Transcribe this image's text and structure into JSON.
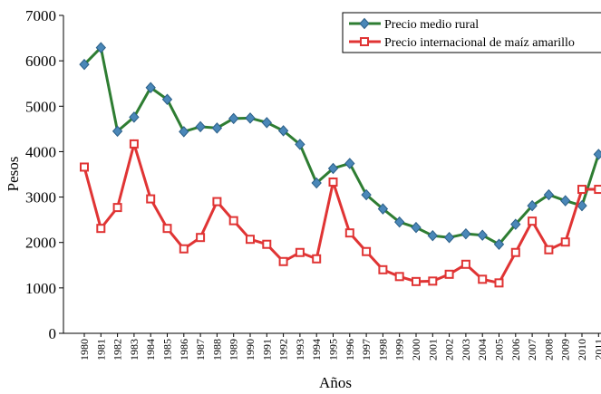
{
  "chart_data": {
    "type": "line",
    "x_label": "Años",
    "y_label": "Pesos",
    "categories": [
      "1980",
      "1981",
      "1982",
      "1983",
      "1984",
      "1985",
      "1986",
      "1987",
      "1988",
      "1989",
      "1990",
      "1991",
      "1992",
      "1993",
      "1994",
      "1995",
      "1996",
      "1997",
      "1998",
      "1999",
      "2000",
      "2001",
      "2002",
      "2003",
      "2004",
      "2005",
      "2006",
      "2007",
      "2008",
      "2009",
      "2010",
      "2011"
    ],
    "series": [
      {
        "name": "Precio medio rural",
        "color": "#2e7d32",
        "marker_color": "#4a87b8",
        "values": [
          5920,
          6290,
          4450,
          4760,
          5410,
          5150,
          4440,
          4550,
          4520,
          4730,
          4740,
          4640,
          4460,
          4160,
          3310,
          3630,
          3740,
          3050,
          2740,
          2450,
          2330,
          2150,
          2110,
          2190,
          2160,
          1960,
          2400,
          2810,
          3050,
          2920,
          2810,
          3940
        ]
      },
      {
        "name": "Precio internacional de maíz amarillo",
        "color": "#e03434",
        "marker_color": "#ffffff",
        "values": [
          3660,
          2310,
          2770,
          4170,
          2960,
          2310,
          1860,
          2110,
          2900,
          2480,
          2070,
          1960,
          1580,
          1780,
          1640,
          3330,
          2210,
          1800,
          1400,
          1250,
          1140,
          1150,
          1300,
          1520,
          1190,
          1110,
          1780,
          2470,
          1840,
          2010,
          3170,
          3170
        ]
      }
    ],
    "ylim": [
      0,
      7000
    ],
    "yticks": [
      0,
      1000,
      2000,
      3000,
      4000,
      5000,
      6000,
      7000
    ],
    "legend": "upper right"
  }
}
